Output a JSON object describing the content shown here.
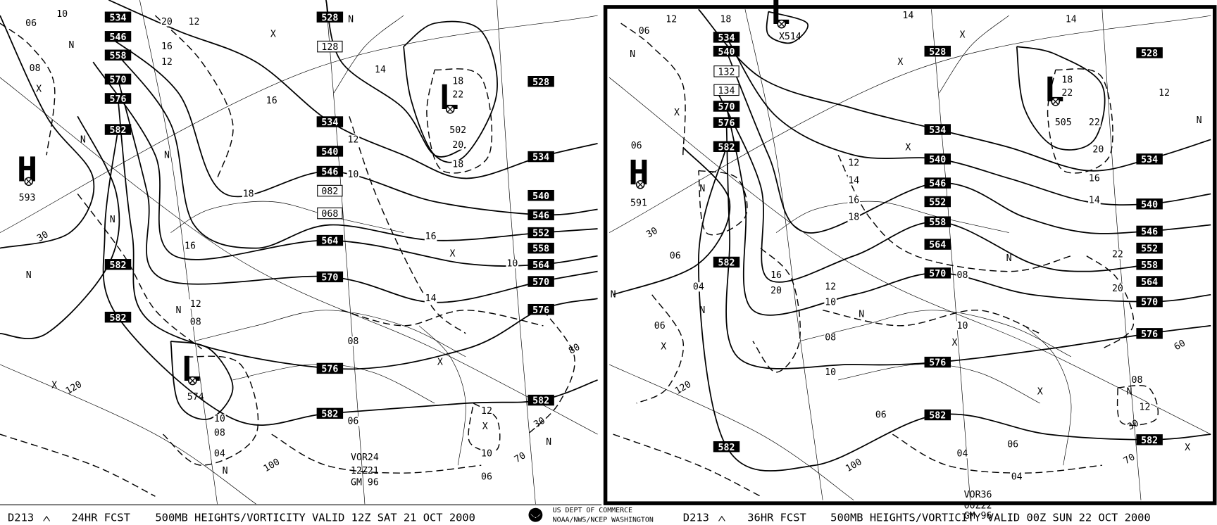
{
  "panels": [
    {
      "footer": {
        "code": "D213",
        "forecast": "24HR FCST",
        "title": "500MB HEIGHTS/VORTICITY VALID 12Z SAT 21 OCT 2000"
      },
      "info": [
        "VOR24",
        "12Z21",
        "GM 96"
      ],
      "centers": [
        {
          "symbol": "H",
          "value": "593"
        },
        {
          "symbol": "L",
          "value": "502"
        },
        {
          "symbol": "L",
          "value": "574"
        }
      ],
      "height_labels": [
        534,
        546,
        558,
        570,
        576,
        582,
        582,
        582,
        528,
        534,
        540,
        546,
        564,
        570,
        576,
        582,
        528,
        534,
        540,
        546,
        552,
        558,
        564,
        570,
        576,
        582
      ],
      "boxed_labels": [
        "128",
        "082",
        "068"
      ],
      "vorticity_labels": [
        "06",
        "10",
        "08",
        "20",
        "12",
        "16",
        "12",
        "16",
        "18",
        "16",
        "12",
        "08",
        "10",
        "08",
        "04",
        "12",
        "10",
        "14",
        "18",
        "22",
        "20",
        "18",
        "16",
        "14",
        "10",
        "08",
        "06",
        "12",
        "10",
        "06"
      ],
      "markers": [
        "N",
        "N",
        "N",
        "N",
        "N",
        "N",
        "N",
        "N",
        "N",
        "X",
        "X",
        "X",
        "X",
        "X",
        "X"
      ],
      "grid_labels": [
        "30",
        "120",
        "100",
        "70",
        "80",
        "30"
      ]
    },
    {
      "footer": {
        "code": "D213",
        "forecast": "36HR FCST",
        "title": "500MB HEIGHTS/VORTICITY VALID 00Z SUN 22 OCT 2000"
      },
      "info": [
        "VOR36",
        "00Z22",
        "GM 96"
      ],
      "centers": [
        {
          "symbol": "H",
          "value": "591"
        },
        {
          "symbol": "L",
          "value": "X514"
        },
        {
          "symbol": "L",
          "value": "505"
        }
      ],
      "height_labels": [
        534,
        540,
        570,
        576,
        582,
        582,
        582,
        528,
        534,
        540,
        546,
        552,
        558,
        564,
        570,
        576,
        582,
        528,
        534,
        540,
        546,
        552,
        558,
        564,
        570,
        576,
        582
      ],
      "boxed_labels": [
        "132",
        "134"
      ],
      "vorticity_labels": [
        "12",
        "18",
        "06",
        "14",
        "14",
        "12",
        "18",
        "22",
        "20",
        "22",
        "16",
        "14",
        "12",
        "14",
        "16",
        "18",
        "16",
        "20",
        "12",
        "10",
        "08",
        "10",
        "06",
        "08",
        "10",
        "22",
        "20",
        "08",
        "12",
        "04",
        "06",
        "04",
        "06",
        "04",
        "06",
        "06"
      ],
      "markers": [
        "N",
        "N",
        "N",
        "N",
        "N",
        "N",
        "N",
        "N",
        "X",
        "X",
        "X",
        "X",
        "X",
        "X",
        "X",
        "X"
      ],
      "grid_labels": [
        "30",
        "120",
        "100",
        "70",
        "60",
        "30"
      ]
    }
  ],
  "agency": [
    "US DEPT OF COMMERCE",
    "NOAA/NWS/NCEP WASHINGTON"
  ]
}
